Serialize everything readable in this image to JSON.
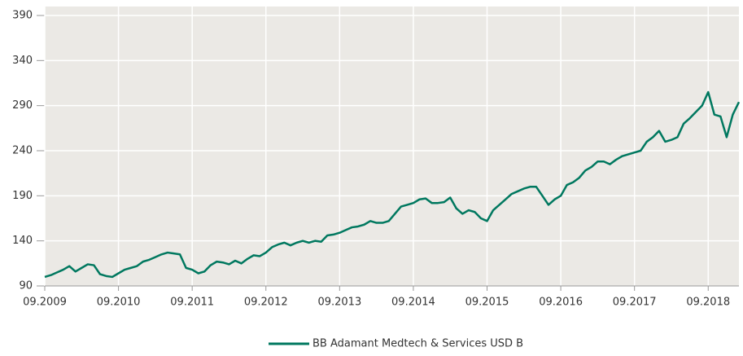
{
  "chart_data": {
    "type": "line",
    "x": [
      "09.2009",
      "10.2009",
      "11.2009",
      "12.2009",
      "01.2010",
      "02.2010",
      "03.2010",
      "04.2010",
      "05.2010",
      "06.2010",
      "07.2010",
      "08.2010",
      "09.2010",
      "10.2010",
      "11.2010",
      "12.2010",
      "01.2011",
      "02.2011",
      "03.2011",
      "04.2011",
      "05.2011",
      "06.2011",
      "07.2011",
      "08.2011",
      "09.2011",
      "10.2011",
      "11.2011",
      "12.2011",
      "01.2012",
      "02.2012",
      "03.2012",
      "04.2012",
      "05.2012",
      "06.2012",
      "07.2012",
      "08.2012",
      "09.2012",
      "10.2012",
      "11.2012",
      "12.2012",
      "01.2013",
      "02.2013",
      "03.2013",
      "04.2013",
      "05.2013",
      "06.2013",
      "07.2013",
      "08.2013",
      "09.2013",
      "10.2013",
      "11.2013",
      "12.2013",
      "01.2014",
      "02.2014",
      "03.2014",
      "04.2014",
      "05.2014",
      "06.2014",
      "07.2014",
      "08.2014",
      "09.2014",
      "10.2014",
      "11.2014",
      "12.2014",
      "01.2015",
      "02.2015",
      "03.2015",
      "04.2015",
      "05.2015",
      "06.2015",
      "07.2015",
      "08.2015",
      "09.2015",
      "10.2015",
      "11.2015",
      "12.2015",
      "01.2016",
      "02.2016",
      "03.2016",
      "04.2016",
      "05.2016",
      "06.2016",
      "07.2016",
      "08.2016",
      "09.2016",
      "10.2016",
      "11.2016",
      "12.2016",
      "01.2017",
      "02.2017",
      "03.2017",
      "04.2017",
      "05.2017",
      "06.2017",
      "07.2017",
      "08.2017",
      "09.2017",
      "10.2017",
      "11.2017",
      "12.2017",
      "01.2018",
      "02.2018",
      "03.2018",
      "04.2018",
      "05.2018",
      "06.2018",
      "07.2018",
      "08.2018",
      "09.2018",
      "10.2018",
      "11.2018",
      "12.2018",
      "01.2019",
      "02.2019"
    ],
    "series": [
      {
        "name": "BB Adamant Medtech & Services USD B",
        "color": "#00785f",
        "values": [
          100,
          102,
          105,
          108,
          112,
          106,
          110,
          114,
          113,
          103,
          101,
          100,
          104,
          108,
          110,
          112,
          117,
          119,
          122,
          125,
          127,
          126,
          125,
          110,
          108,
          104,
          106,
          113,
          117,
          116,
          114,
          118,
          115,
          120,
          124,
          123,
          127,
          133,
          136,
          138,
          135,
          138,
          140,
          138,
          140,
          139,
          146,
          147,
          149,
          152,
          155,
          156,
          158,
          162,
          160,
          160,
          162,
          170,
          178,
          180,
          182,
          186,
          187,
          182,
          182,
          183,
          188,
          176,
          170,
          174,
          172,
          165,
          162,
          174,
          180,
          186,
          192,
          195,
          198,
          200,
          200,
          190,
          180,
          186,
          190,
          202,
          205,
          210,
          218,
          222,
          228,
          228,
          225,
          230,
          234,
          236,
          238,
          240,
          250,
          255,
          262,
          250,
          252,
          255,
          270,
          276,
          283,
          290,
          305,
          280,
          278,
          255,
          280,
          294
        ]
      }
    ],
    "xticks": [
      "09.2009",
      "09.2010",
      "09.2011",
      "09.2012",
      "09.2013",
      "09.2014",
      "09.2015",
      "09.2016",
      "09.2017",
      "09.2018"
    ],
    "ylim": [
      90,
      390
    ],
    "yticks": [
      90,
      140,
      190,
      240,
      290,
      340,
      390
    ],
    "grid": true,
    "legend": "bottom"
  }
}
